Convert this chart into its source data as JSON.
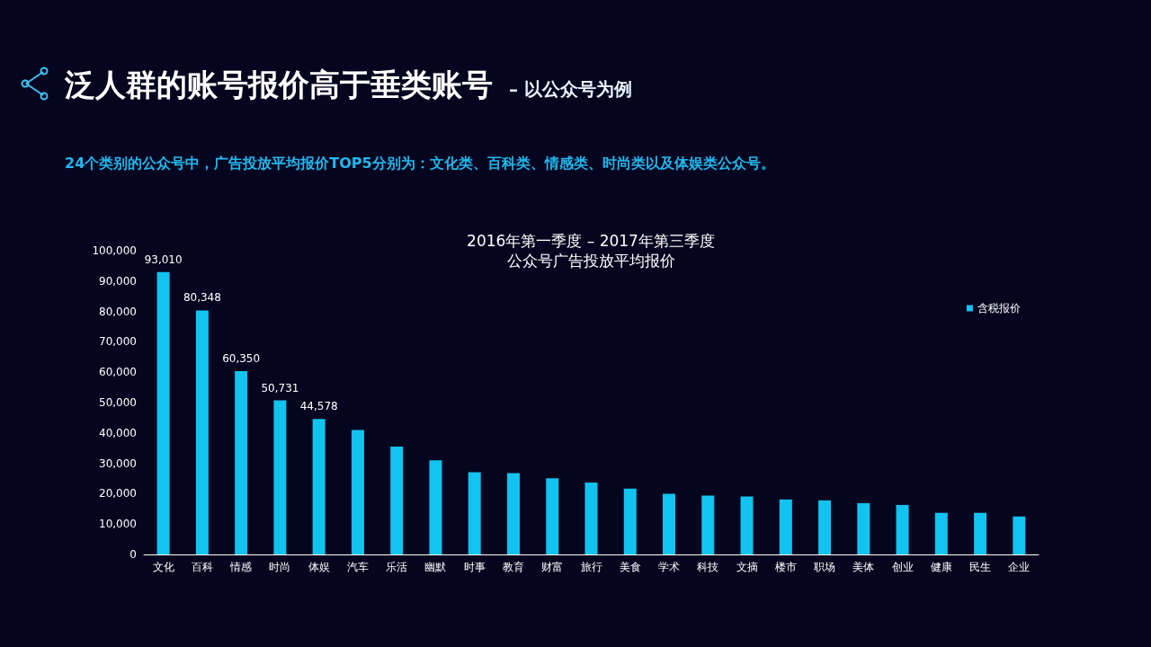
{
  "chart_data": {
    "type": "bar",
    "title": "泛人群的账号报价高于垂类账号",
    "subtitle": "– 以公众号为例",
    "annotations": [
      "24个类别的公众号中，广告投放平均报价TOP5分别为：文化类、百科类、情感类、时尚类以及体娱类公众号。",
      "2016年第一季度 – 2017年第三季度",
      "公众号广告投放平均报价"
    ],
    "categories": [
      "文化",
      "百科",
      "情感",
      "时尚",
      "体娱",
      "汽车",
      "乐活",
      "幽默",
      "时事",
      "教育",
      "财富",
      "旅行",
      "美食",
      "学术",
      "科技",
      "文摘",
      "楼市",
      "职场",
      "美体",
      "创业",
      "健康",
      "民生",
      "企业"
    ],
    "series": [
      {
        "name": "含税报价",
        "color": "#12c3f0",
        "values": [
          93010,
          80348,
          60350,
          50731,
          44578,
          41000,
          35500,
          31000,
          27100,
          26800,
          25100,
          23700,
          21700,
          20000,
          19400,
          19100,
          18100,
          17800,
          16900,
          16300,
          13700,
          13700,
          12500
        ],
        "value_labels": [
          "93,010",
          "80,348",
          "60,350",
          "50,731",
          "44,578",
          null,
          null,
          null,
          null,
          null,
          null,
          null,
          null,
          null,
          null,
          null,
          null,
          null,
          null,
          null,
          null,
          null,
          null
        ]
      }
    ],
    "ylim": [
      0,
      100000
    ],
    "yticks": [
      0,
      {
        "value": 10000,
        "label": "10,000"
      },
      {
        "value": 20000,
        "label": "20,000"
      },
      {
        "value": 30000,
        "label": "30,000"
      },
      {
        "value": 40000,
        "label": "40,000"
      },
      {
        "value": 50000,
        "label": "50,000"
      },
      {
        "value": 60000,
        "label": "60,000"
      },
      {
        "value": 70000,
        "label": "70,000"
      },
      {
        "value": 80000,
        "label": "80,000"
      },
      {
        "value": 90000,
        "label": "90,000"
      },
      {
        "value": 100000,
        "label": "100,000"
      }
    ],
    "grid": false,
    "legend": "top right"
  }
}
